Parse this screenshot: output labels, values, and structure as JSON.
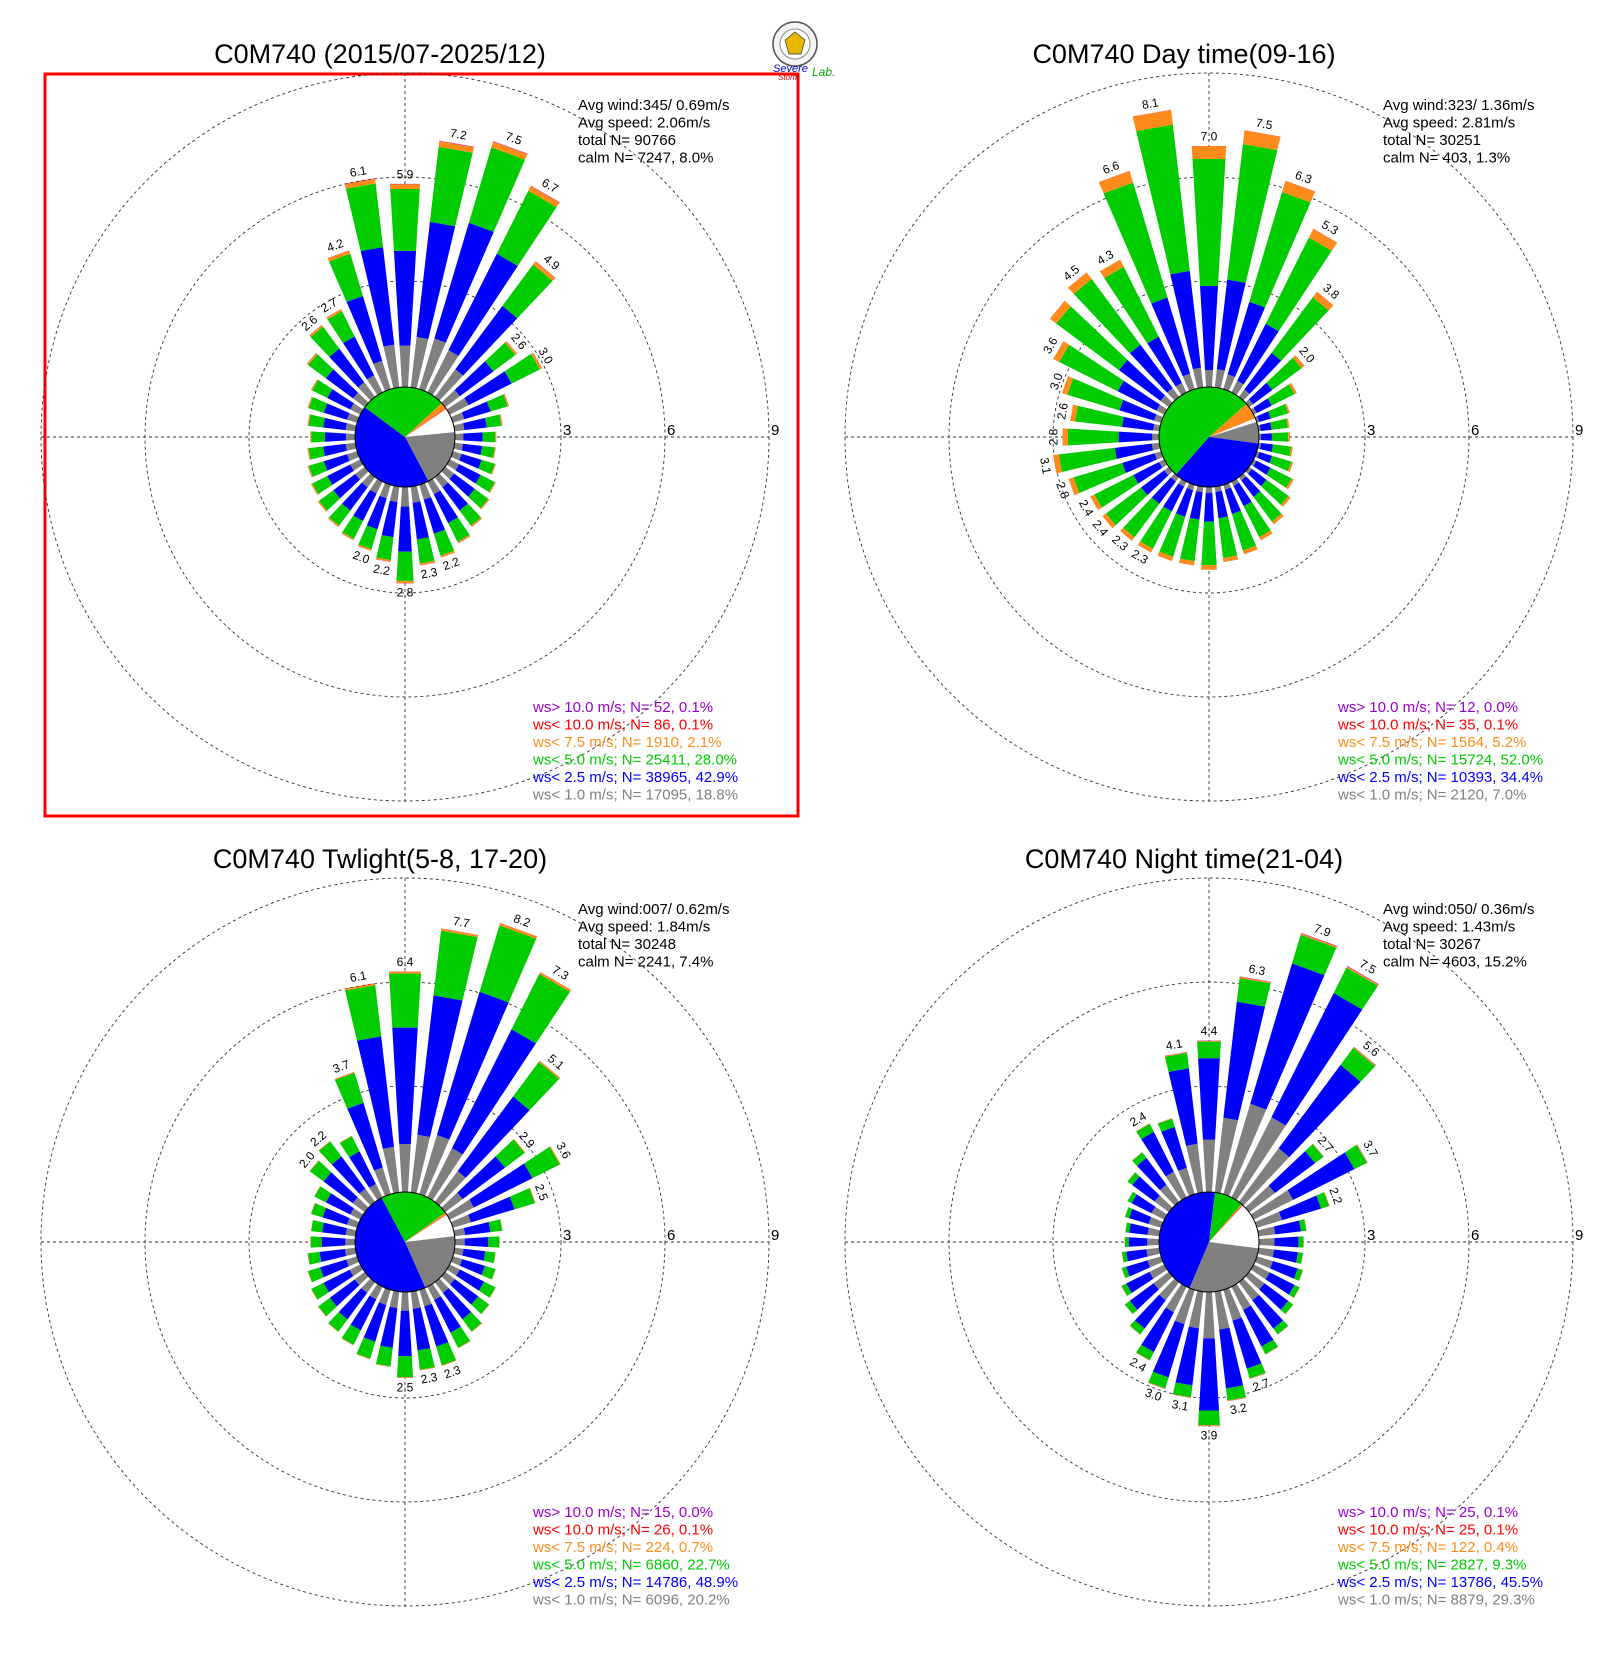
{
  "logo": {
    "lines": [
      "Severe",
      "Storm",
      "Lab."
    ]
  },
  "colors": {
    "gt10": "#9900cc",
    "lt10": "#ff0000",
    "lt75": "#ff8c1a",
    "lt5": "#00cc00",
    "lt25": "#0000ff",
    "lt1": "#808080",
    "highlight": "#ff0000"
  },
  "chart_data": [
    {
      "type": "polar-bar",
      "title": "C0M740 (2015/07-2025/12)",
      "highlighted": true,
      "stats": {
        "avg_wind": "Avg wind:345/ 0.69m/s",
        "avg_speed": "Avg speed: 2.06m/s",
        "total": "total N=      90766",
        "calm": "calm N=   7247,   8.0%"
      },
      "ring_labels": [
        "3",
        "6",
        "9"
      ],
      "rmax": 11,
      "directions_deg": [
        0,
        10,
        20,
        30,
        40,
        50,
        60,
        70,
        80,
        90,
        100,
        110,
        120,
        130,
        140,
        150,
        160,
        170,
        180,
        190,
        200,
        210,
        220,
        230,
        240,
        250,
        260,
        270,
        280,
        290,
        300,
        310,
        320,
        330,
        340,
        350
      ],
      "bar_totals": [
        5.9,
        7.2,
        7.5,
        6.7,
        4.9,
        2.6,
        3.0,
        1.7,
        1.4,
        1.2,
        1.2,
        1.3,
        1.5,
        1.6,
        1.8,
        2.0,
        2.2,
        2.3,
        2.8,
        2.2,
        2.0,
        1.9,
        1.8,
        1.7,
        1.6,
        1.5,
        1.4,
        1.3,
        1.4,
        1.5,
        1.6,
        2.1,
        2.6,
        2.7,
        4.2,
        6.1
      ],
      "bar_labels": [
        "5.9",
        "7.2",
        "7.5",
        "6.7",
        "4.9",
        "2.6",
        "3.0",
        "",
        "",
        "",
        "",
        "",
        "",
        "",
        "",
        "",
        "2.2",
        "2.3",
        "2.8",
        "2.2",
        "2.0",
        "",
        "",
        "",
        "",
        "",
        "",
        "",
        "",
        "",
        "",
        "",
        "2.6",
        "2.7",
        "4.2",
        "6.1"
      ],
      "class_shares": [
        0.188,
        0.429,
        0.28,
        0.021,
        0.001,
        0.001
      ],
      "pie_shares": [
        0.08,
        0.188,
        0.429,
        0.28,
        0.021,
        0.002
      ],
      "legend": [
        {
          "text": "ws> 10.0 m/s; N=    52,  0.1%",
          "key": "gt10"
        },
        {
          "text": "ws< 10.0 m/s; N=    86,  0.1%",
          "key": "lt10"
        },
        {
          "text": "ws<  7.5 m/s; N=  1910,  2.1%",
          "key": "lt75"
        },
        {
          "text": "ws<  5.0 m/s; N= 25411, 28.0%",
          "key": "lt5"
        },
        {
          "text": "ws<  2.5 m/s; N= 38965, 42.9%",
          "key": "lt25"
        },
        {
          "text": "ws<  1.0 m/s; N= 17095, 18.8%",
          "key": "lt1"
        }
      ]
    },
    {
      "type": "polar-bar",
      "title": "C0M740 Day time(09-16)",
      "highlighted": false,
      "stats": {
        "avg_wind": "Avg wind:323/ 1.36m/s",
        "avg_speed": "Avg speed: 2.81m/s",
        "total": "total N=      30251",
        "calm": "calm N=    403,   1.3%"
      },
      "ring_labels": [
        "3",
        "6",
        "9"
      ],
      "rmax": 11,
      "directions_deg": [
        0,
        10,
        20,
        30,
        40,
        50,
        60,
        70,
        80,
        90,
        100,
        110,
        120,
        130,
        140,
        150,
        160,
        170,
        180,
        190,
        200,
        210,
        220,
        230,
        240,
        250,
        260,
        270,
        280,
        290,
        300,
        310,
        320,
        330,
        340,
        350
      ],
      "bar_totals": [
        7.0,
        7.5,
        6.3,
        5.3,
        3.8,
        2.0,
        1.4,
        1.0,
        0.9,
        0.9,
        1.0,
        1.1,
        1.3,
        1.5,
        1.7,
        1.9,
        2.1,
        2.2,
        2.4,
        2.3,
        2.3,
        2.3,
        2.3,
        2.4,
        2.4,
        2.8,
        3.1,
        2.8,
        2.6,
        3.0,
        3.6,
        4.3,
        4.5,
        4.3,
        6.6,
        8.1
      ],
      "bar_labels": [
        "7.0",
        "7.5",
        "6.3",
        "5.3",
        "3.8",
        "2.0",
        "",
        "",
        "",
        "",
        "",
        "",
        "",
        "",
        "",
        "",
        "",
        "",
        "",
        "",
        "",
        "2.3",
        "2.3",
        "2.4",
        "2.4",
        "2.8",
        "3.1",
        "2.8",
        "2.6",
        "3.0",
        "3.6",
        "",
        "4.5",
        "4.3",
        "6.6",
        "8.1"
      ],
      "class_shares": [
        0.07,
        0.344,
        0.52,
        0.052,
        0.001,
        0.0
      ],
      "pie_shares": [
        0.013,
        0.07,
        0.344,
        0.52,
        0.052,
        0.001
      ],
      "legend": [
        {
          "text": "ws> 10.0 m/s; N=    12,  0.0%",
          "key": "gt10"
        },
        {
          "text": "ws< 10.0 m/s; N=    35,  0.1%",
          "key": "lt10"
        },
        {
          "text": "ws<  7.5 m/s; N=  1564,  5.2%",
          "key": "lt75"
        },
        {
          "text": "ws<  5.0 m/s; N= 15724, 52.0%",
          "key": "lt5"
        },
        {
          "text": "ws<  2.5 m/s; N= 10393, 34.4%",
          "key": "lt25"
        },
        {
          "text": "ws<  1.0 m/s; N=  2120,  7.0%",
          "key": "lt1"
        }
      ]
    },
    {
      "type": "polar-bar",
      "title": "C0M740 Twlight(5-8, 17-20)",
      "highlighted": false,
      "stats": {
        "avg_wind": "Avg wind:007/ 0.62m/s",
        "avg_speed": "Avg speed: 1.84m/s",
        "total": "total N=      30248",
        "calm": "calm N=   2241,   7.4%"
      },
      "ring_labels": [
        "3",
        "6",
        "9"
      ],
      "rmax": 11,
      "directions_deg": [
        0,
        10,
        20,
        30,
        40,
        50,
        60,
        70,
        80,
        90,
        100,
        110,
        120,
        130,
        140,
        150,
        160,
        170,
        180,
        190,
        200,
        210,
        220,
        230,
        240,
        250,
        260,
        270,
        280,
        290,
        300,
        310,
        320,
        330,
        340,
        350
      ],
      "bar_totals": [
        6.4,
        7.7,
        8.2,
        7.3,
        5.1,
        2.9,
        3.6,
        2.5,
        1.4,
        1.3,
        1.2,
        1.3,
        1.5,
        1.6,
        1.8,
        2.0,
        2.3,
        2.3,
        2.5,
        2.2,
        2.1,
        1.9,
        1.8,
        1.7,
        1.6,
        1.5,
        1.4,
        1.3,
        1.3,
        1.4,
        1.5,
        2.0,
        2.2,
        2.0,
        3.7,
        6.1
      ],
      "bar_labels": [
        "6.4",
        "7.7",
        "8.2",
        "7.3",
        "5.1",
        "2.9",
        "3.6",
        "2.5",
        "",
        "",
        "",
        "",
        "",
        "",
        "",
        "",
        "2.3",
        "2.3",
        "2.5",
        "",
        "",
        "",
        "",
        "",
        "",
        "",
        "",
        "",
        "",
        "",
        "",
        "2.0",
        "2.2",
        "",
        "3.7",
        "6.1"
      ],
      "class_shares": [
        0.202,
        0.489,
        0.227,
        0.007,
        0.001,
        0.0
      ],
      "pie_shares": [
        0.074,
        0.202,
        0.489,
        0.227,
        0.007,
        0.001
      ],
      "legend": [
        {
          "text": "ws> 10.0 m/s; N=    15,  0.0%",
          "key": "gt10"
        },
        {
          "text": "ws< 10.0 m/s; N=    26,  0.1%",
          "key": "lt10"
        },
        {
          "text": "ws<  7.5 m/s; N=   224,  0.7%",
          "key": "lt75"
        },
        {
          "text": "ws<  5.0 m/s; N=  6860, 22.7%",
          "key": "lt5"
        },
        {
          "text": "ws<  2.5 m/s; N= 14786, 48.9%",
          "key": "lt25"
        },
        {
          "text": "ws<  1.0 m/s; N=  6096, 20.2%",
          "key": "lt1"
        }
      ]
    },
    {
      "type": "polar-bar",
      "title": "C0M740 Night time(21-04)",
      "highlighted": false,
      "stats": {
        "avg_wind": "Avg wind:050/ 0.36m/s",
        "avg_speed": "Avg speed: 1.43m/s",
        "total": "total N=      30267",
        "calm": "calm N=   4603,  15.2%"
      },
      "ring_labels": [
        "3",
        "6",
        "9"
      ],
      "rmax": 11,
      "directions_deg": [
        0,
        10,
        20,
        30,
        40,
        50,
        60,
        70,
        80,
        90,
        100,
        110,
        120,
        130,
        140,
        150,
        160,
        170,
        180,
        190,
        200,
        210,
        220,
        230,
        240,
        250,
        260,
        270,
        280,
        290,
        300,
        310,
        320,
        330,
        340,
        350
      ],
      "bar_totals": [
        4.4,
        6.3,
        7.9,
        7.5,
        5.6,
        2.7,
        3.7,
        2.2,
        1.4,
        1.3,
        1.3,
        1.4,
        1.5,
        1.6,
        1.9,
        2.2,
        2.7,
        3.2,
        3.9,
        3.1,
        3.0,
        2.4,
        1.9,
        1.6,
        1.4,
        1.2,
        1.1,
        1.0,
        1.0,
        1.1,
        1.2,
        1.5,
        1.8,
        2.4,
        2.3,
        4.1
      ],
      "bar_labels": [
        "4.4",
        "6.3",
        "7.9",
        "7.5",
        "5.6",
        "2.7",
        "3.7",
        "2.2",
        "",
        "",
        "",
        "",
        "",
        "",
        "",
        "",
        "2.7",
        "3.2",
        "3.9",
        "3.1",
        "3.0",
        "2.4",
        "",
        "",
        "",
        "",
        "",
        "",
        "",
        "",
        "",
        "",
        "",
        "2.4",
        "",
        "4.1"
      ],
      "class_shares": [
        0.293,
        0.455,
        0.093,
        0.004,
        0.001,
        0.001
      ],
      "pie_shares": [
        0.152,
        0.293,
        0.455,
        0.093,
        0.004,
        0.002
      ],
      "legend": [
        {
          "text": "ws> 10.0 m/s; N=    25,  0.1%",
          "key": "gt10"
        },
        {
          "text": "ws< 10.0 m/s; N=    25,  0.1%",
          "key": "lt10"
        },
        {
          "text": "ws<  7.5 m/s; N=   122,  0.4%",
          "key": "lt75"
        },
        {
          "text": "ws<  5.0 m/s; N=  2827,  9.3%",
          "key": "lt5"
        },
        {
          "text": "ws<  2.5 m/s; N= 13786, 45.5%",
          "key": "lt25"
        },
        {
          "text": "ws<  1.0 m/s; N=  8879, 29.3%",
          "key": "lt1"
        }
      ]
    }
  ]
}
